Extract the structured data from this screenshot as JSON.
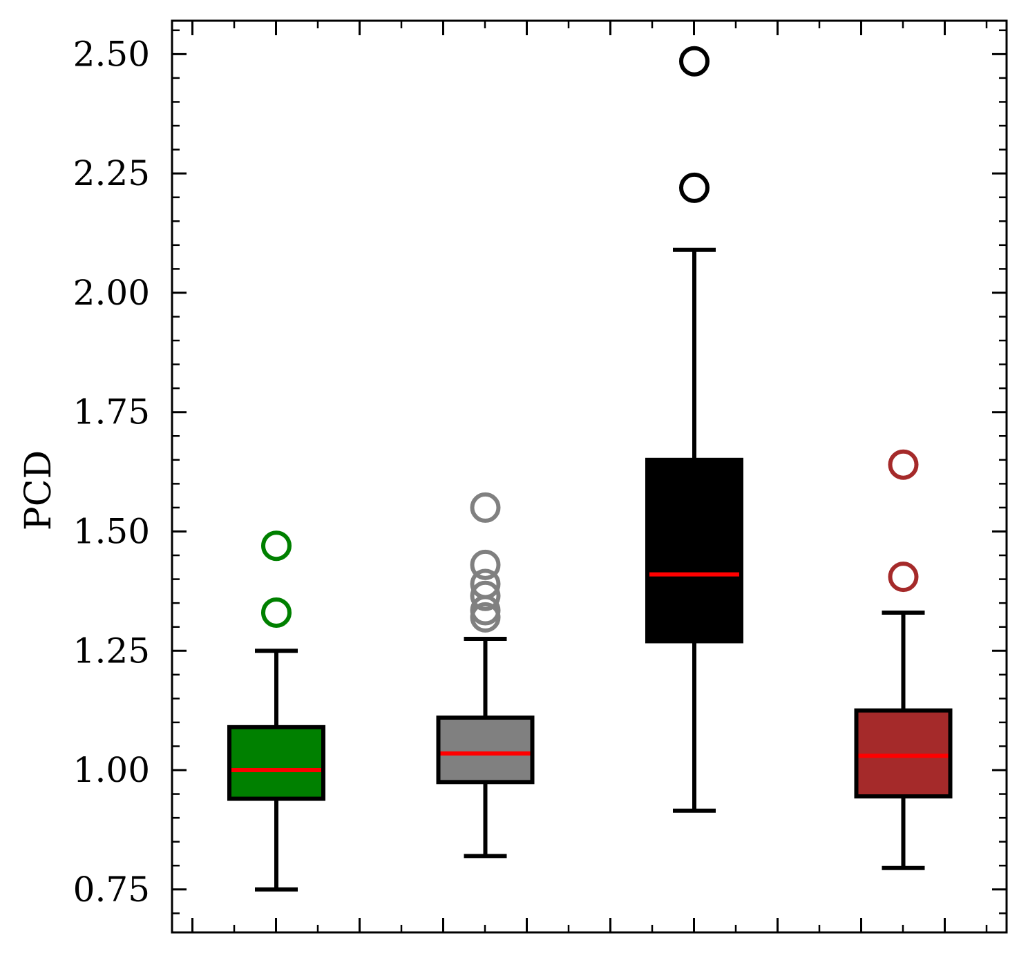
{
  "chart_data": {
    "type": "boxplot",
    "title": "",
    "xlabel": "",
    "ylabel": "PCD",
    "ylim": [
      0.66,
      2.57
    ],
    "yticks": [
      0.75,
      1.0,
      1.25,
      1.5,
      1.75,
      2.0,
      2.25,
      2.5
    ],
    "ytick_labels": [
      "0.75",
      "1.00",
      "1.25",
      "1.50",
      "1.75",
      "2.00",
      "2.25",
      "2.50"
    ],
    "grid": false,
    "legend": "none",
    "median_color": "#ff0000",
    "boxes": [
      {
        "fill": "#008000",
        "outlier_color": "#008000",
        "whisker_low": 0.75,
        "q1": 0.94,
        "median": 1.0,
        "q3": 1.09,
        "whisker_high": 1.25,
        "outliers": [
          1.33,
          1.47
        ]
      },
      {
        "fill": "#808080",
        "outlier_color": "#808080",
        "whisker_low": 0.82,
        "q1": 0.975,
        "median": 1.035,
        "q3": 1.11,
        "whisker_high": 1.275,
        "outliers": [
          1.32,
          1.335,
          1.365,
          1.39,
          1.43,
          1.55
        ]
      },
      {
        "fill": "#000000",
        "outlier_color": "#000000",
        "whisker_low": 0.915,
        "q1": 1.27,
        "median": 1.41,
        "q3": 1.65,
        "whisker_high": 2.09,
        "outliers": [
          2.22,
          2.485
        ]
      },
      {
        "fill": "#a52a2a",
        "outlier_color": "#a52a2a",
        "whisker_low": 0.795,
        "q1": 0.945,
        "median": 1.03,
        "q3": 1.125,
        "whisker_high": 1.33,
        "outliers": [
          1.405,
          1.64
        ]
      }
    ]
  }
}
